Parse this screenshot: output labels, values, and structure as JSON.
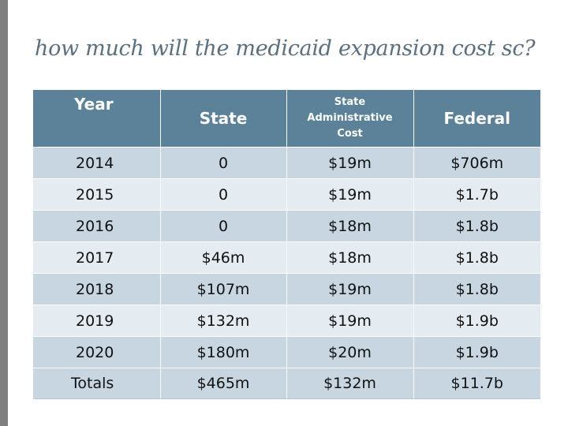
{
  "slide": {
    "title": "how much will the medicaid expansion cost sc?"
  },
  "table": {
    "headers": {
      "year": "Year",
      "state": "State",
      "state_admin_line1": "State",
      "state_admin_line2": "Administrative",
      "state_admin_line3": "Cost",
      "federal": "Federal"
    },
    "rows": [
      {
        "year": "2014",
        "state": "0",
        "admin": "$19m",
        "federal": "$706m"
      },
      {
        "year": "2015",
        "state": "0",
        "admin": "$19m",
        "federal": "$1.7b"
      },
      {
        "year": "2016",
        "state": "0",
        "admin": "$18m",
        "federal": "$1.8b"
      },
      {
        "year": "2017",
        "state": "$46m",
        "admin": "$18m",
        "federal": "$1.8b"
      },
      {
        "year": "2018",
        "state": "$107m",
        "admin": "$19m",
        "federal": "$1.8b"
      },
      {
        "year": "2019",
        "state": "$132m",
        "admin": "$19m",
        "federal": "$1.9b"
      },
      {
        "year": "2020",
        "state": "$180m",
        "admin": "$20m",
        "federal": "$1.9b"
      }
    ],
    "totals": {
      "label": "Totals",
      "state": "$465m",
      "admin": "$132m",
      "federal": "$11.7b"
    }
  }
}
